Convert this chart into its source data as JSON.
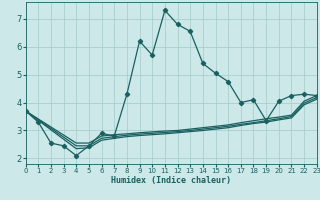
{
  "xlabel": "Humidex (Indice chaleur)",
  "bg_color": "#cce8e8",
  "grid_color": "#aacece",
  "line_color": "#1a6060",
  "xlim": [
    0,
    23
  ],
  "ylim": [
    1.8,
    7.6
  ],
  "xticks": [
    0,
    1,
    2,
    3,
    4,
    5,
    6,
    7,
    8,
    9,
    10,
    11,
    12,
    13,
    14,
    15,
    16,
    17,
    18,
    19,
    20,
    21,
    22,
    23
  ],
  "yticks": [
    2,
    3,
    4,
    5,
    6,
    7
  ],
  "series": [
    {
      "x": [
        0,
        1,
        2,
        3,
        4,
        5,
        6,
        7,
        8,
        9,
        10,
        11,
        12,
        13,
        14,
        15,
        16,
        17,
        18,
        19,
        20,
        21,
        22,
        23
      ],
      "y": [
        3.7,
        3.3,
        2.55,
        2.45,
        2.1,
        2.45,
        2.9,
        2.8,
        4.3,
        6.2,
        5.7,
        7.3,
        6.8,
        6.55,
        5.4,
        5.05,
        4.75,
        4.0,
        4.1,
        3.35,
        4.05,
        4.25,
        4.3,
        4.25
      ],
      "markers": true
    },
    {
      "x": [
        0,
        4,
        5,
        6,
        7,
        8,
        9,
        10,
        11,
        12,
        13,
        14,
        15,
        16,
        17,
        18,
        19,
        20,
        21,
        22,
        23
      ],
      "y": [
        3.7,
        2.55,
        2.55,
        2.8,
        2.85,
        2.88,
        2.92,
        2.95,
        2.98,
        3.0,
        3.05,
        3.1,
        3.15,
        3.2,
        3.28,
        3.35,
        3.42,
        3.48,
        3.55,
        4.05,
        4.25
      ],
      "markers": false
    },
    {
      "x": [
        0,
        4,
        5,
        6,
        7,
        8,
        9,
        10,
        11,
        12,
        13,
        14,
        15,
        16,
        17,
        18,
        19,
        20,
        21,
        22,
        23
      ],
      "y": [
        3.7,
        2.45,
        2.45,
        2.72,
        2.78,
        2.83,
        2.87,
        2.9,
        2.93,
        2.96,
        3.0,
        3.05,
        3.1,
        3.15,
        3.22,
        3.28,
        3.35,
        3.42,
        3.5,
        3.98,
        4.18
      ],
      "markers": false
    },
    {
      "x": [
        0,
        4,
        5,
        6,
        7,
        8,
        9,
        10,
        11,
        12,
        13,
        14,
        15,
        16,
        17,
        18,
        19,
        20,
        21,
        22,
        23
      ],
      "y": [
        3.7,
        2.35,
        2.38,
        2.65,
        2.72,
        2.78,
        2.82,
        2.85,
        2.88,
        2.92,
        2.96,
        3.0,
        3.05,
        3.1,
        3.18,
        3.25,
        3.3,
        3.38,
        3.45,
        3.92,
        4.12
      ],
      "markers": false
    }
  ]
}
